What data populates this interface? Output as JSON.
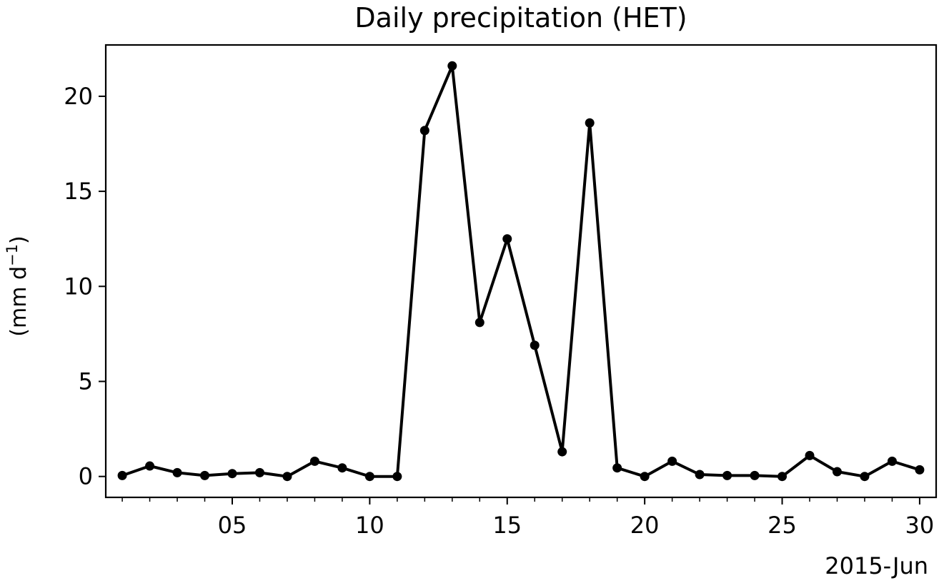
{
  "chart_data": {
    "type": "line",
    "title": "Daily precipitation (HET)",
    "ylabel": "(mm d",
    "ylabel_sup": "−1",
    "ylabel_close": ")",
    "x_offset_label": "2015-Jun",
    "x_unit": "day of June 2015",
    "xlim": [
      0.4,
      30.6
    ],
    "ylim": [
      -1.1,
      22.7
    ],
    "x_ticks": [
      {
        "value": 5,
        "label": "05"
      },
      {
        "value": 10,
        "label": "10"
      },
      {
        "value": 15,
        "label": "15"
      },
      {
        "value": 20,
        "label": "20"
      },
      {
        "value": 25,
        "label": "25"
      },
      {
        "value": 30,
        "label": "30"
      }
    ],
    "x_minor_ticks": [
      1,
      2,
      3,
      4,
      6,
      7,
      8,
      9,
      11,
      12,
      13,
      14,
      16,
      17,
      18,
      19,
      21,
      22,
      23,
      24,
      26,
      27,
      28,
      29
    ],
    "y_ticks": [
      {
        "value": 0,
        "label": "0"
      },
      {
        "value": 5,
        "label": "5"
      },
      {
        "value": 10,
        "label": "10"
      },
      {
        "value": 15,
        "label": "15"
      },
      {
        "value": 20,
        "label": "20"
      }
    ],
    "grid": false,
    "series": [
      {
        "color": "#000000",
        "marker": "circle",
        "x": [
          1,
          2,
          3,
          4,
          5,
          6,
          7,
          8,
          9,
          10,
          11,
          12,
          13,
          14,
          15,
          16,
          17,
          18,
          19,
          20,
          21,
          22,
          23,
          24,
          25,
          26,
          27,
          28,
          29,
          30
        ],
        "y": [
          0.05,
          0.55,
          0.2,
          0.05,
          0.15,
          0.2,
          0.0,
          0.8,
          0.45,
          0.0,
          0.0,
          18.2,
          21.6,
          8.1,
          12.5,
          6.9,
          1.3,
          18.6,
          0.45,
          0.0,
          0.8,
          0.1,
          0.05,
          0.05,
          0.0,
          1.1,
          0.25,
          0.0,
          0.8,
          0.35
        ]
      }
    ]
  }
}
